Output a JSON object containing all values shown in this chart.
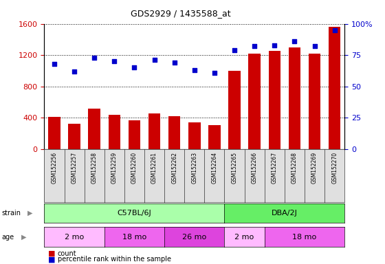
{
  "title": "GDS2929 / 1435588_at",
  "samples": [
    "GSM152256",
    "GSM152257",
    "GSM152258",
    "GSM152259",
    "GSM152260",
    "GSM152261",
    "GSM152262",
    "GSM152263",
    "GSM152264",
    "GSM152265",
    "GSM152266",
    "GSM152267",
    "GSM152268",
    "GSM152269",
    "GSM152270"
  ],
  "counts": [
    410,
    320,
    520,
    440,
    370,
    460,
    420,
    340,
    310,
    1000,
    1220,
    1250,
    1300,
    1220,
    1560
  ],
  "percentiles": [
    68,
    62,
    73,
    70,
    65,
    71,
    69,
    63,
    61,
    79,
    82,
    83,
    86,
    82,
    95
  ],
  "bar_color": "#cc0000",
  "dot_color": "#0000cc",
  "ylim_left": [
    0,
    1600
  ],
  "ylim_right": [
    0,
    100
  ],
  "yticks_left": [
    0,
    400,
    800,
    1200,
    1600
  ],
  "yticks_right": [
    0,
    25,
    50,
    75,
    100
  ],
  "strain_groups": [
    {
      "label": "C57BL/6J",
      "start": 0,
      "end": 9,
      "color": "#aaffaa"
    },
    {
      "label": "DBA/2J",
      "start": 9,
      "end": 15,
      "color": "#66ee66"
    }
  ],
  "age_groups": [
    {
      "label": "2 mo",
      "start": 0,
      "end": 3,
      "color": "#ffbbff"
    },
    {
      "label": "18 mo",
      "start": 3,
      "end": 6,
      "color": "#ee66ee"
    },
    {
      "label": "26 mo",
      "start": 6,
      "end": 9,
      "color": "#dd44dd"
    },
    {
      "label": "2 mo",
      "start": 9,
      "end": 11,
      "color": "#ffbbff"
    },
    {
      "label": "18 mo",
      "start": 11,
      "end": 15,
      "color": "#ee66ee"
    }
  ],
  "legend_count_label": "count",
  "legend_pct_label": "percentile rank within the sample",
  "tick_label_color_left": "#cc0000",
  "tick_label_color_right": "#0000cc"
}
